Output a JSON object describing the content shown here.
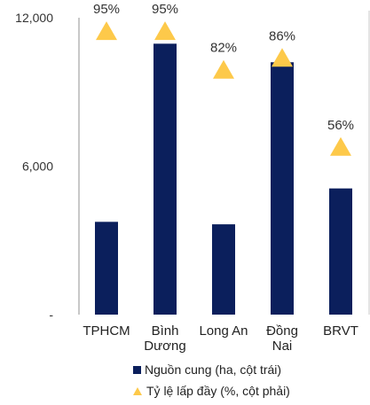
{
  "chart_data": {
    "type": "bar",
    "categories": [
      [
        "TPHCM"
      ],
      [
        "Bình",
        "Dương"
      ],
      [
        "Long An"
      ],
      [
        "Đồng",
        "Nai"
      ],
      [
        "BRVT"
      ]
    ],
    "series": [
      {
        "name": "Nguồn cung (ha, cột trái)",
        "kind": "bar",
        "axis": "left",
        "values": [
          3750,
          10950,
          3650,
          10200,
          5100
        ]
      },
      {
        "name": "Tỷ lệ lấp đầy (%, cột phải)",
        "kind": "marker",
        "axis": "right",
        "values": [
          95,
          95,
          82,
          86,
          56
        ],
        "labels": [
          "95%",
          "95%",
          "82%",
          "86%",
          "56%"
        ]
      }
    ],
    "y_left": {
      "ylim": [
        0,
        12000
      ],
      "ticks": [
        0,
        6000,
        12000
      ],
      "tick_labels": [
        "-",
        "6,000",
        "12,000"
      ]
    },
    "y_right": {
      "ylim": [
        0,
        100
      ]
    },
    "grid": false,
    "legend_position": "bottom",
    "colors": {
      "bar": "#0b1f5c",
      "marker": "#fdc94a",
      "axis": "#c8c8c8"
    }
  }
}
